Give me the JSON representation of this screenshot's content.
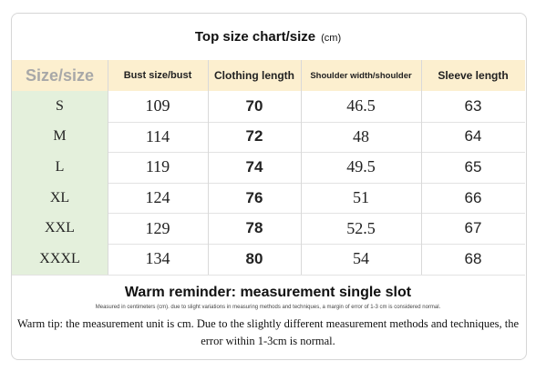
{
  "header": {
    "title": "Top size chart/size",
    "unit": "(cm)"
  },
  "table": {
    "columns": [
      "Size/size",
      "Bust size/bust",
      "Clothing length",
      "Shoulder width/shoulder",
      "Sleeve length"
    ],
    "rows": [
      [
        "S",
        109,
        70,
        46.5,
        63
      ],
      [
        "M",
        114,
        72,
        48,
        64
      ],
      [
        "L",
        119,
        74,
        49.5,
        65
      ],
      [
        "XL",
        124,
        76,
        51,
        66
      ],
      [
        "XXL",
        129,
        78,
        52.5,
        67
      ],
      [
        "XXXL",
        134,
        80,
        54,
        68
      ]
    ]
  },
  "footer": {
    "heading": "Warm reminder: measurement single slot",
    "fine_print": "Measured in centimeters (cm). due to slight variations in measuring methods and techniques, a margin of error of 1-3 cm is considered normal.",
    "tip": "Warm tip: the measurement unit is cm. Due to the slightly different measurement methods and techniques, the error within 1-3cm is normal."
  }
}
